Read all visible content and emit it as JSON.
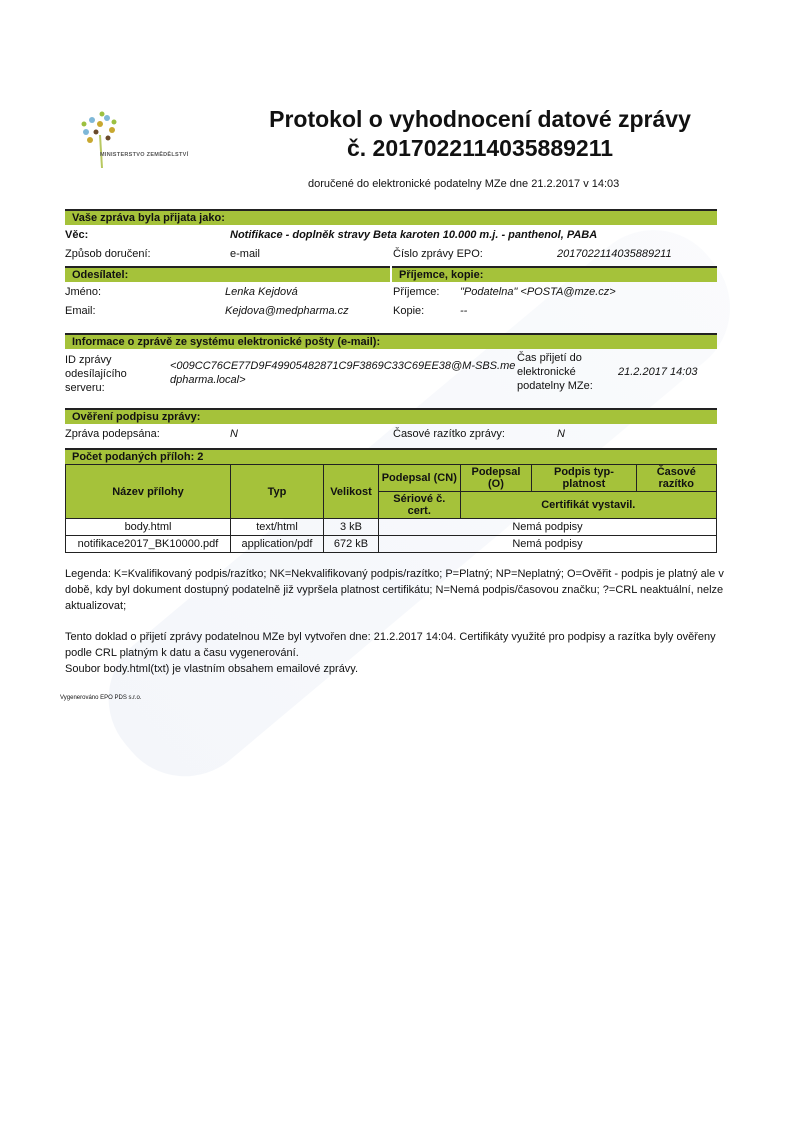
{
  "logo": {
    "text": "MINISTERSTVO ZEMĚDĚLSTVÍ"
  },
  "title_line1": "Protokol o vyhodnocení datové zprávy",
  "title_line2": "č. 2017022114035889211",
  "subtitle": "doručené do elektronické podatelny MZe dne 21.2.2017 v 14:03",
  "s1": {
    "header": "Vaše zpráva byla přijata jako:",
    "vec_label": "Věc:",
    "vec": "Notifikace - doplněk stravy Beta karoten 10.000 m.j. - panthenol, PABA",
    "zpusob_label": "Způsob doručení:",
    "zpusob": "e-mail",
    "cislo_label": "Číslo zprávy EPO:",
    "cislo": "2017022114035889211"
  },
  "s2": {
    "header_left": "Odesílatel:",
    "header_right": "Příjemce, kopie:",
    "jmeno_label": "Jméno:",
    "jmeno": "Lenka Kejdová",
    "email_label": "Email:",
    "email": "Kejdova@medpharma.cz",
    "prijemce_label": "Příjemce:",
    "prijemce": "\"Podatelna\" <POSTA@mze.cz>",
    "kopie_label": "Kopie:",
    "kopie": "--"
  },
  "s3": {
    "header": "Informace o zprávě ze systému elektronické pošty (e-mail):",
    "id_label": "ID zprávy odesílajícího serveru:",
    "id": "<009CC76CE77D9F49905482871C9F3869C33C69EE38@M-SBS.medpharma.local>",
    "cas_label": "Čas přijetí do elektronické podatelny MZe:",
    "cas": "21.2.2017 14:03"
  },
  "s4": {
    "header": "Ověření podpisu zprávy:",
    "podepsana_label": "Zpráva podepsána:",
    "podepsana": "N",
    "razitko_label": "Časové razítko zprávy:",
    "razitko": "N"
  },
  "s5": {
    "header": "Počet podaných příloh: 2",
    "columns": {
      "nazev": "Název přílohy",
      "typ": "Typ",
      "velikost": "Velikost",
      "cn": "Podepsal (CN)",
      "o": "Podepsal (O)",
      "typplatnost": "Podpis typ-platnost",
      "casove": "Časové razítko",
      "seriove": "Sériové č. cert.",
      "vystavil": "Certifikát vystavil."
    },
    "rows": [
      {
        "nazev": "body.html",
        "typ": "text/html",
        "velikost": "3 kB",
        "podpis": "Nemá podpisy"
      },
      {
        "nazev": "notifikace2017_BK10000.pdf",
        "typ": "application/pdf",
        "velikost": "672 kB",
        "podpis": "Nemá podpisy"
      }
    ]
  },
  "legend": "Legenda: K=Kvalifikovaný podpis/razítko; NK=Nekvalifikovaný podpis/razítko; P=Platný; NP=Neplatný; O=Ověřit - podpis je platný ale v době, kdy byl dokument dostupný podatelně již vypršela platnost certifikátu; N=Nemá podpis/časovou značku; ?=CRL neaktuální, nelze aktualizovat;",
  "note1": "Tento doklad o přijetí zprávy podatelnou MZe byl vytvořen dne: 21.2.2017 14:04. Certifikáty využité pro podpisy a razítka byly ověřeny podle CRL platným k datu a času vygenerování.",
  "note2": "Soubor body.html(txt) je vlastním obsahem emailové zprávy.",
  "footer": "Vygenerováno EPO PDS s.r.o.",
  "colors": {
    "accent": "#a5c23a"
  }
}
